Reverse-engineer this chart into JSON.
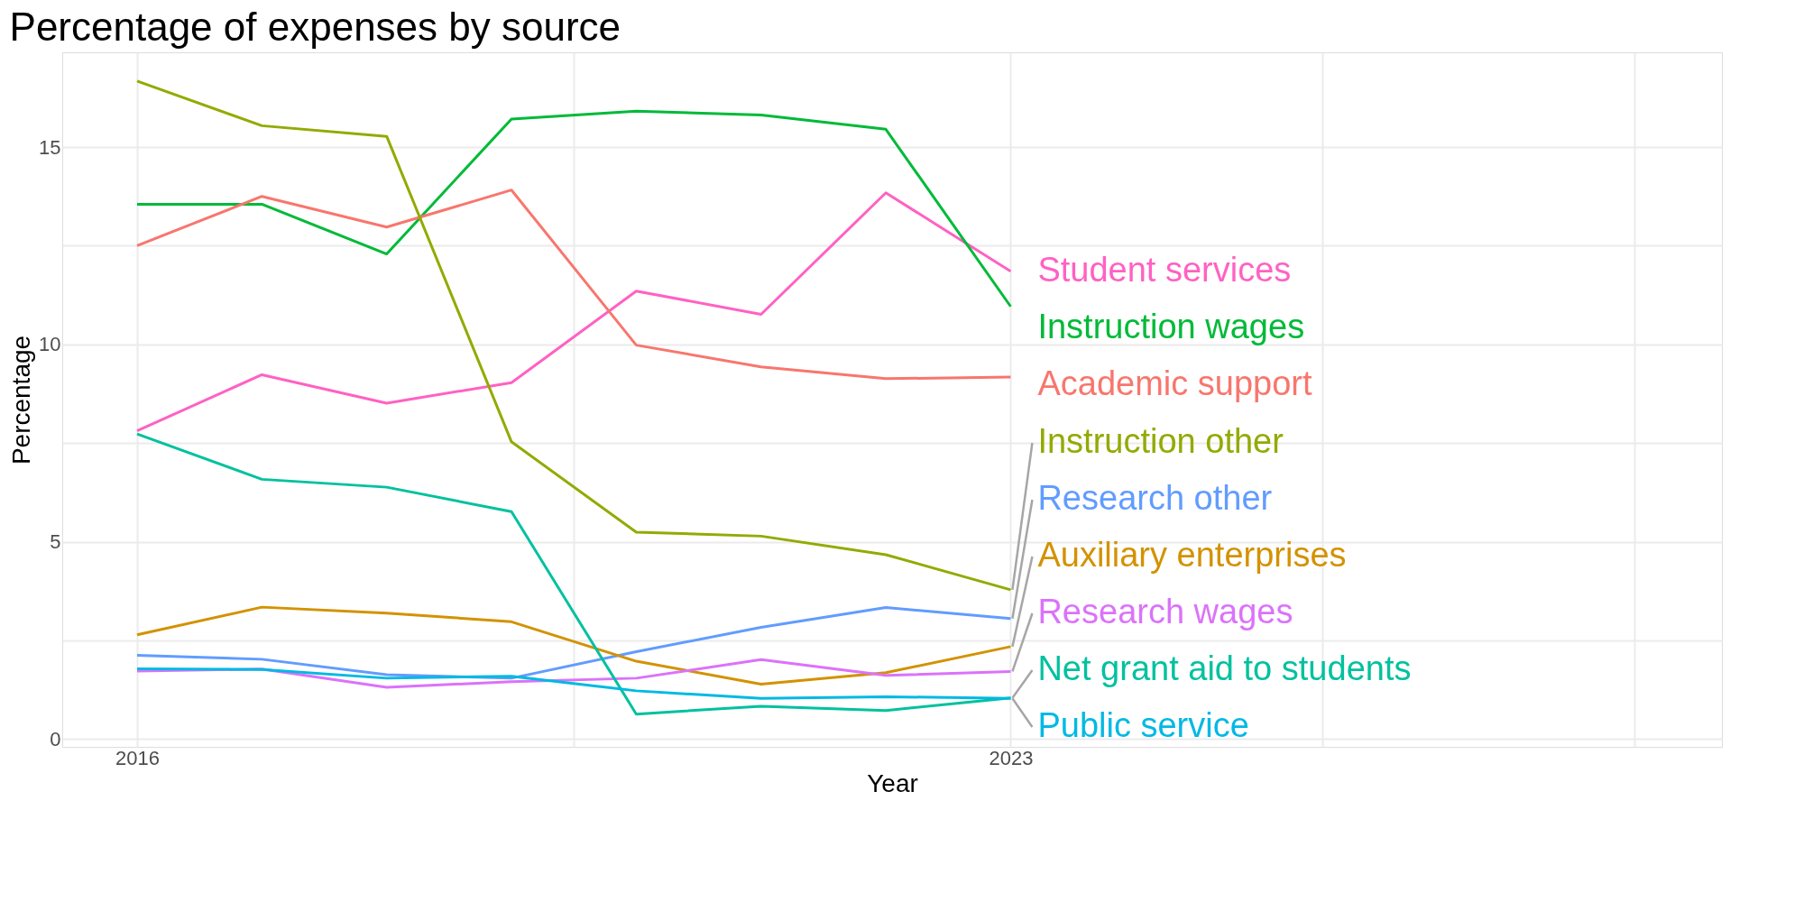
{
  "chart_data": {
    "type": "line",
    "title": "Percentage of expenses by source",
    "xlabel": "Year",
    "ylabel": "Percentage",
    "x": [
      2016,
      2017,
      2018,
      2019,
      2020,
      2021,
      2022,
      2023
    ],
    "series": [
      {
        "name": "Student services",
        "color": "#ff61c3",
        "values": [
          7.81,
          9.23,
          8.51,
          9.03,
          11.35,
          10.76,
          13.84,
          11.85
        ]
      },
      {
        "name": "Instruction wages",
        "color": "#00ba38",
        "values": [
          13.55,
          13.55,
          12.29,
          15.71,
          15.91,
          15.81,
          15.45,
          10.96
        ]
      },
      {
        "name": "Academic support",
        "color": "#f8766d",
        "values": [
          12.5,
          13.75,
          12.97,
          13.91,
          9.98,
          9.43,
          9.13,
          9.17
        ]
      },
      {
        "name": "Instruction other",
        "color": "#93aa00",
        "values": [
          16.67,
          15.54,
          15.27,
          7.53,
          5.24,
          5.14,
          4.67,
          3.78
        ]
      },
      {
        "name": "Research other",
        "color": "#619cff",
        "values": [
          2.12,
          2.02,
          1.63,
          1.54,
          2.21,
          2.83,
          3.33,
          3.05
        ]
      },
      {
        "name": "Auxiliary enterprises",
        "color": "#d39200",
        "values": [
          2.64,
          3.34,
          3.19,
          2.97,
          1.97,
          1.39,
          1.68,
          2.34
        ]
      },
      {
        "name": "Research wages",
        "color": "#db72fb",
        "values": [
          1.72,
          1.77,
          1.31,
          1.45,
          1.54,
          2.01,
          1.61,
          1.71
        ]
      },
      {
        "name": "Net grant aid to students",
        "color": "#00c19f",
        "values": [
          7.73,
          6.58,
          6.38,
          5.76,
          0.63,
          0.83,
          0.72,
          1.04
        ]
      },
      {
        "name": "Public service",
        "color": "#00b9e3",
        "values": [
          1.78,
          1.76,
          1.54,
          1.59,
          1.22,
          1.03,
          1.07,
          1.03
        ]
      }
    ],
    "xlim": [
      2015.4,
      2028.7
    ],
    "xticks": [
      2016,
      {
        "value": 2019.5,
        "label": null
      },
      2023,
      {
        "value": 2025.5,
        "label": null
      },
      {
        "value": 2028,
        "label": null
      }
    ],
    "ylim": [
      -0.2,
      17.4
    ],
    "yticks": [
      0,
      {
        "value": 2.5,
        "label": null
      },
      5,
      {
        "value": 7.5,
        "label": null
      },
      10,
      {
        "value": 12.5,
        "label": null
      },
      15
    ],
    "grid": true,
    "marker": "none",
    "line_style": "solid"
  }
}
